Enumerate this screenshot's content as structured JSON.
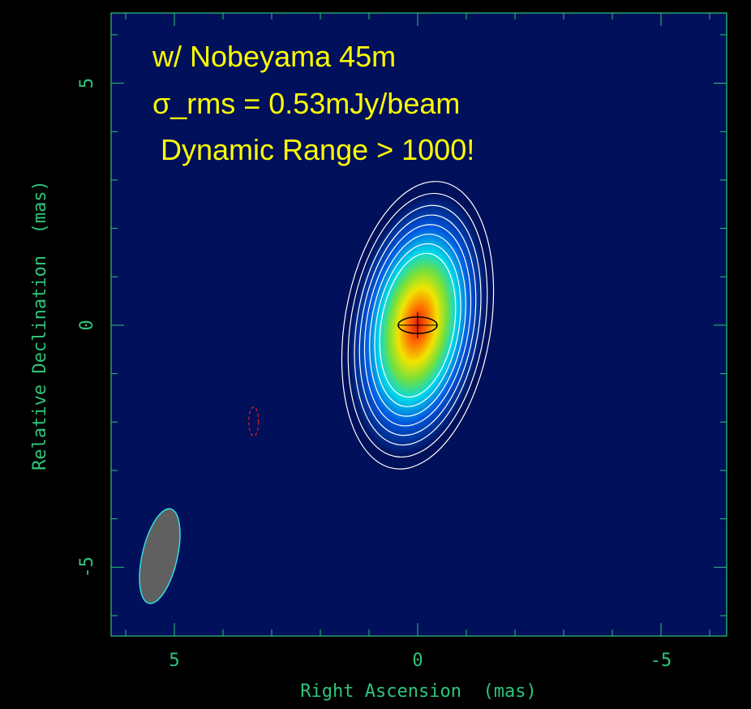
{
  "chart_data": {
    "type": "contour",
    "x_label": "Right Ascension  (mas)",
    "y_label": "Relative Declination  (mas)",
    "annotations": [
      "w/ Nobeyama 45m",
      "σ_rms = 0.53mJy/beam",
      " Dynamic Range > 1000!"
    ],
    "xlim": [
      6.3,
      -6.35
    ],
    "ylim": [
      -6.42,
      6.45
    ],
    "xticks": [
      5,
      0,
      -5
    ],
    "yticks": [
      -5,
      0,
      5
    ],
    "xminorticks": [
      6,
      4,
      3,
      2,
      1,
      -1,
      -2,
      -3,
      -4,
      -6
    ],
    "yminorticks": [
      -6,
      -4,
      -3,
      -2,
      -1,
      1,
      2,
      3,
      4,
      6
    ],
    "source": {
      "x": 0,
      "y": 0,
      "position_angle": -9.5,
      "axis_ratio": 0.5,
      "contours": [
        3.0,
        2.75,
        2.5,
        2.3,
        2.1,
        1.9,
        1.7,
        1.5
      ],
      "color": "#ffffff"
    },
    "core": {
      "x": 0,
      "y": 0,
      "major": 0.4,
      "minor": 0.17,
      "color": "#000000"
    },
    "negative_contour": {
      "x": 3.37,
      "y": -1.99,
      "major": 0.3,
      "minor": 0.1,
      "color": "#e02020"
    },
    "beam": {
      "x": 5.3,
      "y": -4.77,
      "major": 1.0,
      "minor": 0.36,
      "position_angle": -13,
      "color": "#606060",
      "edge": "#30e0e0"
    }
  }
}
